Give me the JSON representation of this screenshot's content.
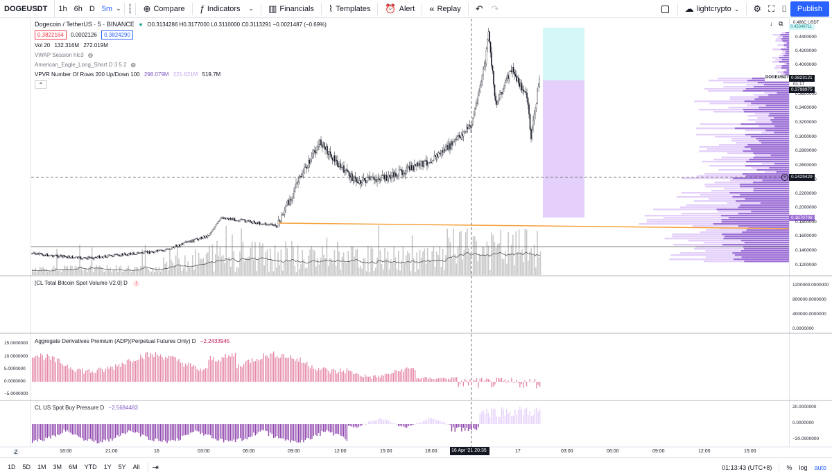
{
  "toolbar": {
    "symbol": "DOGEUSDT",
    "intervals": [
      "1h",
      "6h",
      "D",
      "5m"
    ],
    "active_interval": "5m",
    "compare": "Compare",
    "indicators": "Indicators",
    "financials": "Financials",
    "templates": "Templates",
    "alert": "Alert",
    "replay": "Replay",
    "layout_name": "lightcrypto",
    "publish": "Publish"
  },
  "legend": {
    "title": "Dogecoin / TetherUS · 5 · BINANCE",
    "ohlc": "O0.3134286 H0.3177000 L0.3110000 C0.3113291 −0.0021487 (−0.69%)",
    "bid": "0.3822164",
    "spread": "0.0002126",
    "ask": "0.3824290",
    "vol": "Vol 20",
    "vol_a": "132.316M",
    "vol_b": "272.019M",
    "vwap": "VWAP Session hlc3",
    "american_eagle": "American_Eagle_Long_Short D 3 5 2",
    "vpvr": "VPVR Number Of Rows 200 Up/Down 100",
    "vpvr_a": "298.079M",
    "vpvr_b": "221.621M",
    "vpvr_c": "519.7M",
    "cl_total": "[CL Total Bitcoin Spot Volume V2.0] D",
    "adp": "Aggregate Derivatives Premium (ADP)(Perpetual Futures Only) D",
    "adp_val": "−2.2433945",
    "cl_us": "CL US Spot Buy Pressure D",
    "cl_us_val": "−2.5684483"
  },
  "price_scale": {
    "labels": [
      "0.4400000",
      "0.4200000",
      "0.4000000",
      "0.3600000",
      "0.3400000",
      "0.3200000",
      "0.3000000",
      "0.2800000",
      "0.2600000",
      "0.2400000",
      "0.2200000",
      "0.2000000",
      "0.1800000",
      "0.1600000",
      "0.1400000",
      "0.1200000"
    ],
    "top_a": "0.486C USDT",
    "top_b": "0.45349711",
    "doge_tag": "DOGEUSDT",
    "current": "0.3823121",
    "countdown": "01:17",
    "marker_a": "0.3798975",
    "crosshair": "0.2429429",
    "marker_b": "0.1870708"
  },
  "vol_scale": [
    "1200000.0000000",
    "800000.0000000",
    "400000.0000000",
    "0.0000000"
  ],
  "adp_scale": [
    "15.0000000",
    "10.0000000",
    "5.0000000",
    "0.0000000",
    "−5.0000000"
  ],
  "clus_scale": [
    "20.0000000",
    "0.0000000",
    "−20.0000000"
  ],
  "time_axis": [
    "18:00",
    "21:00",
    "16",
    "03:00",
    "06:00",
    "09:00",
    "12:00",
    "15:00",
    "18:00",
    "17",
    "03:00",
    "06:00",
    "09:00",
    "12:00",
    "15:00"
  ],
  "crosshair_time": "16 Apr '21   20:35",
  "bottom": {
    "ranges": [
      "1D",
      "5D",
      "1M",
      "3M",
      "6M",
      "YTD",
      "1Y",
      "5Y",
      "All"
    ],
    "clock": "01:13:43 (UTC+8)",
    "pct": "%",
    "log": "log",
    "auto": "auto",
    "z": "Z"
  },
  "colors": {
    "accent": "#2962ff",
    "adp": "#e58aa8",
    "purple": "#9c6fd6",
    "orange": "#f5a03a",
    "cyan": "#d4f7f8",
    "lilac": "#e4d0fb"
  },
  "chart_data": {
    "type": "line",
    "title": "Dogecoin / TetherUS · 5 · BINANCE",
    "ylim": [
      0.11,
      0.46
    ],
    "x": [
      "18:00",
      "21:00",
      "16",
      "03:00",
      "06:00",
      "09:00",
      "12:00",
      "15:00",
      "18:00",
      "20:35",
      "17"
    ],
    "series": [
      {
        "name": "DOGEUSDT",
        "values": [
          0.132,
          0.128,
          0.13,
          0.15,
          0.192,
          0.178,
          0.295,
          0.245,
          0.26,
          0.31,
          0.37
        ]
      }
    ]
  }
}
